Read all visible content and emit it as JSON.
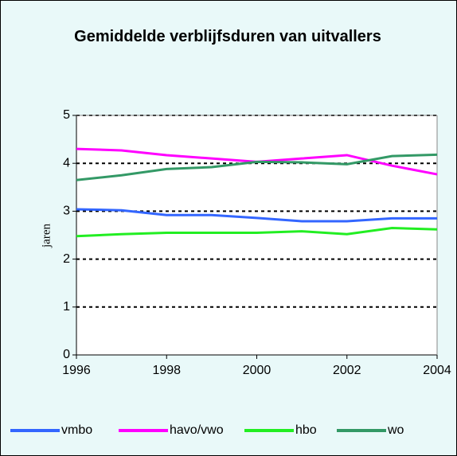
{
  "chart_data": {
    "type": "line",
    "title": "Gemiddelde verblijfsduren van uitvallers",
    "y_label": "jaren",
    "x": [
      1996,
      1997,
      1998,
      1999,
      2000,
      2001,
      2002,
      2003,
      2004
    ],
    "xlim": [
      1996,
      2004
    ],
    "xticks": [
      1996,
      1998,
      2000,
      2002,
      2004
    ],
    "ylim": [
      0,
      5
    ],
    "yticks": [
      0,
      1,
      2,
      3,
      4,
      5
    ],
    "grid": true,
    "legend": "bottom",
    "series": [
      {
        "name": "vmbo",
        "color": "#3366ff",
        "values": [
          3.04,
          3.02,
          2.92,
          2.92,
          2.86,
          2.79,
          2.79,
          2.85,
          2.85
        ]
      },
      {
        "name": "havo/vwo",
        "color": "#ff00ff",
        "values": [
          4.3,
          4.27,
          4.17,
          4.1,
          4.03,
          4.1,
          4.17,
          3.95,
          3.77
        ]
      },
      {
        "name": "hbo",
        "color": "#22ee22",
        "values": [
          2.48,
          2.52,
          2.55,
          2.55,
          2.55,
          2.58,
          2.52,
          2.65,
          2.62
        ]
      },
      {
        "name": "wo",
        "color": "#339966",
        "values": [
          3.65,
          3.75,
          3.88,
          3.92,
          4.03,
          4.02,
          3.98,
          4.15,
          4.18
        ]
      }
    ]
  }
}
